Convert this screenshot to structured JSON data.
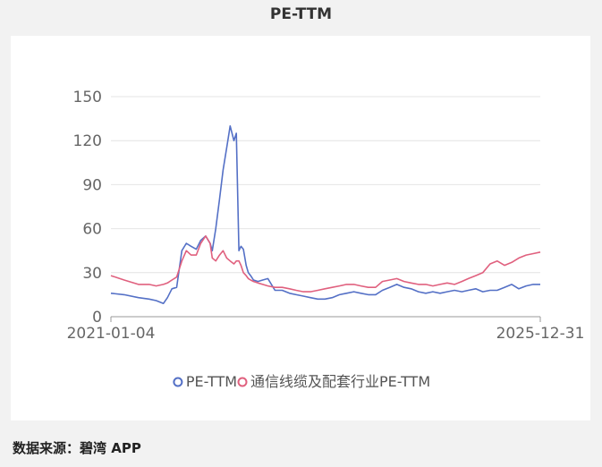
{
  "title": "PE-TTM",
  "source": "数据来源：碧湾 APP",
  "chart_data": {
    "type": "line",
    "title": "PE-TTM",
    "xlabel": "",
    "ylabel": "",
    "x_ticks": [
      "2021-01-04",
      "2025-12-31"
    ],
    "y_ticks": [
      0,
      30,
      60,
      90,
      120,
      150
    ],
    "ylim": [
      0,
      150
    ],
    "grid": true,
    "legend_position": "bottom",
    "x": [
      "2021-01-04",
      "2021-03-01",
      "2021-05-01",
      "2021-06-15",
      "2021-07-15",
      "2021-08-15",
      "2021-09-01",
      "2021-09-20",
      "2021-10-10",
      "2021-11-01",
      "2021-11-20",
      "2021-12-10",
      "2022-01-01",
      "2022-01-20",
      "2022-02-10",
      "2022-03-01",
      "2022-03-10",
      "2022-03-25",
      "2022-04-10",
      "2022-04-25",
      "2022-05-10",
      "2022-05-25",
      "2022-06-10",
      "2022-06-20",
      "2022-07-01",
      "2022-07-10",
      "2022-07-20",
      "2022-08-01",
      "2022-08-10",
      "2022-08-20",
      "2022-09-01",
      "2022-09-20",
      "2022-10-10",
      "2022-11-01",
      "2022-12-01",
      "2023-01-01",
      "2023-02-01",
      "2023-03-01",
      "2023-04-01",
      "2023-05-01",
      "2023-06-01",
      "2023-07-01",
      "2023-08-01",
      "2023-09-01",
      "2023-10-01",
      "2023-11-01",
      "2023-12-01",
      "2024-01-01",
      "2024-02-01",
      "2024-03-01",
      "2024-04-01",
      "2024-05-01",
      "2024-06-01",
      "2024-07-01",
      "2024-08-01",
      "2024-09-01",
      "2024-10-01",
      "2024-11-01",
      "2024-12-01",
      "2025-01-01",
      "2025-02-01",
      "2025-03-01",
      "2025-04-01",
      "2025-05-01",
      "2025-06-01",
      "2025-07-01",
      "2025-08-01",
      "2025-09-01",
      "2025-10-01",
      "2025-11-01",
      "2025-12-01",
      "2025-12-31"
    ],
    "series": [
      {
        "name": "PE-TTM",
        "color": "#5470c6",
        "values": [
          16,
          15,
          13,
          12,
          11,
          9,
          13,
          19,
          20,
          45,
          50,
          48,
          46,
          52,
          55,
          50,
          45,
          60,
          80,
          100,
          115,
          130,
          120,
          125,
          45,
          48,
          46,
          35,
          30,
          28,
          25,
          24,
          25,
          26,
          18,
          18,
          16,
          15,
          14,
          13,
          12,
          12,
          13,
          15,
          16,
          17,
          16,
          15,
          15,
          18,
          20,
          22,
          20,
          19,
          17,
          16,
          17,
          16,
          17,
          18,
          17,
          18,
          19,
          17,
          18,
          18,
          20,
          22,
          19,
          21,
          22,
          22
        ]
      },
      {
        "name": "通信线缆及配套行业PE-TTM",
        "color": "#e0607e",
        "values": [
          28,
          25,
          22,
          22,
          21,
          22,
          23,
          25,
          27,
          38,
          45,
          42,
          42,
          50,
          55,
          50,
          40,
          38,
          42,
          45,
          40,
          38,
          36,
          38,
          38,
          35,
          30,
          28,
          26,
          25,
          24,
          23,
          22,
          21,
          20,
          20,
          19,
          18,
          17,
          17,
          18,
          19,
          20,
          21,
          22,
          22,
          21,
          20,
          20,
          24,
          25,
          26,
          24,
          23,
          22,
          22,
          21,
          22,
          23,
          22,
          24,
          26,
          28,
          30,
          36,
          38,
          35,
          37,
          40,
          42,
          43,
          44
        ]
      }
    ]
  }
}
